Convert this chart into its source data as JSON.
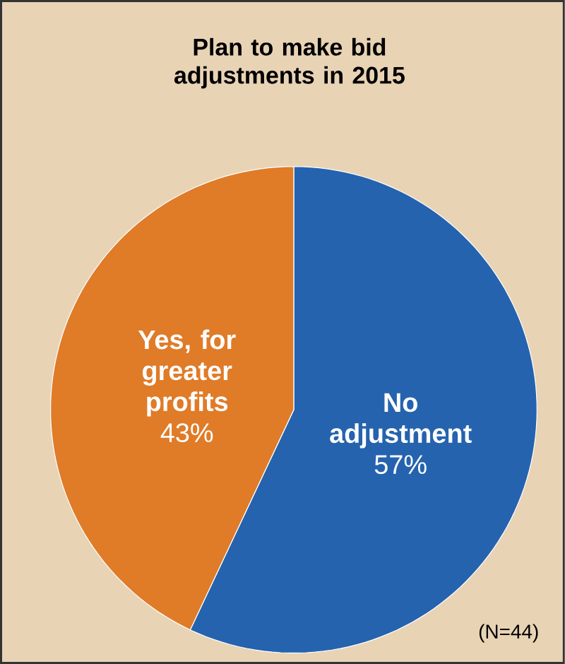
{
  "chart_data": {
    "type": "pie",
    "title": "Plan to make bid adjustments in 2015",
    "categories": [
      "No adjustment",
      "Yes, for greater profits"
    ],
    "values": [
      57,
      43
    ],
    "value_labels": [
      "57%",
      "43%"
    ],
    "colors": [
      "#2563ae",
      "#e07b28"
    ],
    "annotations": [
      "(N=44)"
    ]
  }
}
